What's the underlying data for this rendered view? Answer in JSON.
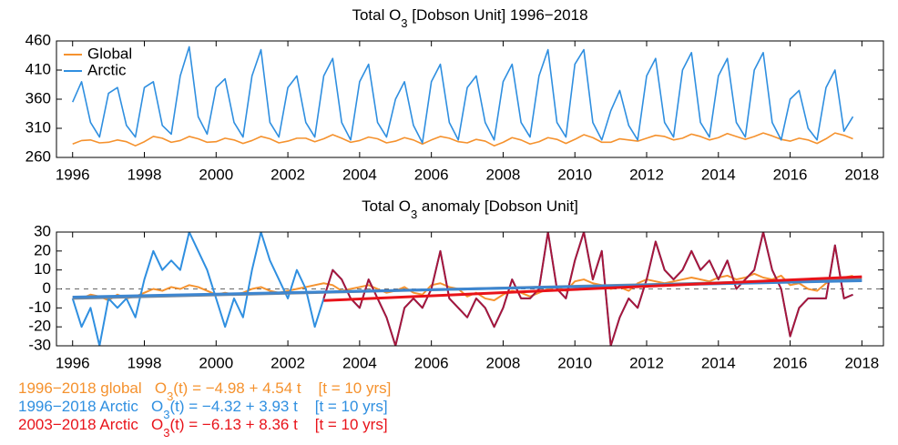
{
  "chart_data": [
    {
      "type": "line",
      "title": [
        "Total O",
        "3",
        " [Dobson Unit] 1996−2018"
      ],
      "xlim": [
        1995.55,
        2018.6
      ],
      "xticks": [
        1996,
        1998,
        2000,
        2002,
        2004,
        2006,
        2008,
        2010,
        2012,
        2014,
        2016,
        2018
      ],
      "ylim": [
        260,
        460
      ],
      "yticks": [
        260,
        310,
        360,
        410,
        460
      ],
      "legend": "top-left",
      "x": [
        1996,
        1996.25,
        1996.5,
        1996.75,
        1997,
        1997.25,
        1997.5,
        1997.75,
        1998,
        1998.25,
        1998.5,
        1998.75,
        1999,
        1999.25,
        1999.5,
        1999.75,
        2000,
        2000.25,
        2000.5,
        2000.75,
        2001,
        2001.25,
        2001.5,
        2001.75,
        2002,
        2002.25,
        2002.5,
        2002.75,
        2003,
        2003.25,
        2003.5,
        2003.75,
        2004,
        2004.25,
        2004.5,
        2004.75,
        2005,
        2005.25,
        2005.5,
        2005.75,
        2006,
        2006.25,
        2006.5,
        2006.75,
        2007,
        2007.25,
        2007.5,
        2007.75,
        2008,
        2008.25,
        2008.5,
        2008.75,
        2009,
        2009.25,
        2009.5,
        2009.75,
        2010,
        2010.25,
        2010.5,
        2010.75,
        2011,
        2011.25,
        2011.5,
        2011.75,
        2012,
        2012.25,
        2012.5,
        2012.75,
        2013,
        2013.25,
        2013.5,
        2013.75,
        2014,
        2014.25,
        2014.5,
        2014.75,
        2015,
        2015.25,
        2015.5,
        2015.75,
        2016,
        2016.25,
        2016.5,
        2016.75,
        2017,
        2017.25,
        2017.5,
        2017.75
      ],
      "series": [
        {
          "name": "Global",
          "color": "#f5922e",
          "legend": true,
          "values": [
            283,
            289,
            290,
            285,
            286,
            290,
            287,
            280,
            287,
            296,
            293,
            286,
            289,
            296,
            292,
            286,
            287,
            293,
            290,
            284,
            289,
            296,
            292,
            285,
            288,
            293,
            293,
            287,
            292,
            299,
            293,
            286,
            289,
            295,
            292,
            285,
            288,
            294,
            290,
            283,
            290,
            296,
            293,
            287,
            285,
            291,
            288,
            280,
            286,
            294,
            290,
            283,
            287,
            294,
            291,
            284,
            291,
            299,
            294,
            286,
            286,
            292,
            290,
            288,
            293,
            298,
            296,
            290,
            293,
            300,
            296,
            290,
            294,
            301,
            296,
            291,
            296,
            302,
            297,
            291,
            288,
            293,
            290,
            284,
            292,
            302,
            298,
            292
          ]
        },
        {
          "name": "Arctic",
          "color": "#2f8fe0",
          "legend": true,
          "values": [
            355,
            390,
            320,
            295,
            370,
            380,
            315,
            295,
            380,
            390,
            315,
            300,
            400,
            450,
            330,
            300,
            380,
            395,
            320,
            295,
            400,
            445,
            320,
            295,
            380,
            400,
            320,
            295,
            400,
            430,
            320,
            290,
            390,
            420,
            320,
            295,
            360,
            390,
            315,
            285,
            390,
            420,
            320,
            290,
            380,
            400,
            320,
            290,
            390,
            420,
            320,
            295,
            400,
            445,
            320,
            295,
            420,
            445,
            320,
            290,
            340,
            375,
            315,
            290,
            400,
            430,
            320,
            295,
            410,
            440,
            320,
            295,
            400,
            430,
            320,
            295,
            410,
            440,
            320,
            290,
            360,
            375,
            310,
            290,
            380,
            410,
            305,
            330
          ]
        }
      ]
    },
    {
      "type": "line",
      "title": [
        "Total O",
        "3",
        " anomaly [Dobson Unit]"
      ],
      "xlim": [
        1995.55,
        2018.6
      ],
      "xticks": [
        1996,
        1998,
        2000,
        2002,
        2004,
        2006,
        2008,
        2010,
        2012,
        2014,
        2016,
        2018
      ],
      "ylim": [
        -30,
        30
      ],
      "yticks": [
        -30,
        -20,
        -10,
        0,
        10,
        20,
        30
      ],
      "zero_line": true,
      "x": [
        1996,
        1996.25,
        1996.5,
        1996.75,
        1997,
        1997.25,
        1997.5,
        1997.75,
        1998,
        1998.25,
        1998.5,
        1998.75,
        1999,
        1999.25,
        1999.5,
        1999.75,
        2000,
        2000.25,
        2000.5,
        2000.75,
        2001,
        2001.25,
        2001.5,
        2001.75,
        2002,
        2002.25,
        2002.5,
        2002.75,
        2003,
        2003.25,
        2003.5,
        2003.75,
        2004,
        2004.25,
        2004.5,
        2004.75,
        2005,
        2005.25,
        2005.5,
        2005.75,
        2006,
        2006.25,
        2006.5,
        2006.75,
        2007,
        2007.25,
        2007.5,
        2007.75,
        2008,
        2008.25,
        2008.5,
        2008.75,
        2009,
        2009.25,
        2009.5,
        2009.75,
        2010,
        2010.25,
        2010.5,
        2010.75,
        2011,
        2011.25,
        2011.5,
        2011.75,
        2012,
        2012.25,
        2012.5,
        2012.75,
        2013,
        2013.25,
        2013.5,
        2013.75,
        2014,
        2014.25,
        2014.5,
        2014.75,
        2015,
        2015.25,
        2015.5,
        2015.75,
        2016,
        2016.25,
        2016.5,
        2016.75,
        2017,
        2017.25,
        2017.5,
        2017.75
      ],
      "series": [
        {
          "color": "#f5922e",
          "width": 2,
          "values": [
            -4,
            -5,
            -3,
            -4,
            -6,
            -3,
            -5,
            -4,
            -2,
            0,
            -1,
            1,
            0,
            2,
            1,
            -1,
            -3,
            -2,
            -3,
            -2,
            0,
            1,
            -1,
            -2,
            -1,
            0,
            1,
            2,
            3,
            2,
            -1,
            0,
            1,
            2,
            0,
            -2,
            -1,
            1,
            -2,
            -3,
            2,
            3,
            1,
            0,
            -4,
            -2,
            -5,
            -6,
            -3,
            -1,
            -2,
            -4,
            -2,
            0,
            1,
            -1,
            4,
            5,
            3,
            2,
            0,
            1,
            -1,
            3,
            5,
            4,
            3,
            4,
            5,
            6,
            5,
            4,
            6,
            7,
            5,
            6,
            8,
            6,
            5,
            7,
            2,
            3,
            0,
            -1,
            3,
            5,
            6,
            7
          ]
        },
        {
          "color": "#2f8fe0",
          "width": 2,
          "values": [
            -5,
            -20,
            -10,
            -30,
            -5,
            -10,
            -5,
            -15,
            5,
            20,
            10,
            15,
            10,
            30,
            20,
            10,
            -5,
            -20,
            -5,
            -15,
            10,
            30,
            15,
            5,
            -5,
            10,
            0,
            -20,
            -5,
            10,
            5,
            -5,
            -10,
            5,
            -5,
            -15,
            -30,
            -10,
            -5,
            -10,
            0,
            20,
            -5,
            -10,
            -15,
            -5,
            -10,
            -20,
            -10,
            5,
            -5,
            -5,
            0,
            30,
            0,
            -5,
            15,
            30,
            5,
            20,
            -30,
            -15,
            -5,
            -10,
            5,
            25,
            10,
            5,
            10,
            20,
            10,
            15,
            5,
            15,
            0,
            5,
            10,
            30,
            10,
            0,
            -25,
            -10,
            -5,
            -5,
            -5,
            23,
            -5,
            -3
          ]
        },
        {
          "color": "#a8163a",
          "width": 2,
          "values": [
            null,
            null,
            null,
            null,
            null,
            null,
            null,
            null,
            null,
            null,
            null,
            null,
            null,
            null,
            null,
            null,
            null,
            null,
            null,
            null,
            null,
            null,
            null,
            null,
            null,
            null,
            null,
            null,
            -5,
            10,
            5,
            -5,
            -10,
            5,
            -5,
            -15,
            -30,
            -10,
            -5,
            -10,
            0,
            20,
            -5,
            -10,
            -15,
            -5,
            -10,
            -20,
            -10,
            5,
            -5,
            -5,
            0,
            30,
            0,
            -5,
            15,
            30,
            5,
            20,
            -30,
            -15,
            -5,
            -10,
            5,
            25,
            10,
            5,
            10,
            20,
            10,
            15,
            5,
            15,
            0,
            5,
            10,
            30,
            10,
            0,
            -25,
            -10,
            -5,
            -5,
            -5,
            23,
            -5,
            -3
          ]
        },
        {
          "color": "#7a8a9c",
          "width": 3,
          "x": [
            1996,
            2018
          ],
          "values": [
            -4.98,
            5.01
          ]
        },
        {
          "color": "#3d86d0",
          "width": 3,
          "x": [
            1996,
            2018
          ],
          "values": [
            -4.32,
            4.33
          ]
        },
        {
          "color": "#e8131a",
          "width": 3,
          "x": [
            2003,
            2018
          ],
          "values": [
            -6.13,
            6.41
          ]
        }
      ],
      "annotations": [
        {
          "color": "#f5922e",
          "parts": [
            "1996−2018 global   O",
            "3",
            "(t) = −4.98 + 4.54 t    [t = 10 yrs]"
          ]
        },
        {
          "color": "#2f8fe0",
          "parts": [
            "1996−2018 Arctic   O",
            "3",
            "(t) = −4.32 + 3.93 t    [t = 10 yrs]"
          ]
        },
        {
          "color": "#e8131a",
          "parts": [
            "2003−2018 Arctic   O",
            "3",
            "(t) = −6.13 + 8.36 t    [t = 10 yrs]"
          ]
        }
      ]
    }
  ]
}
